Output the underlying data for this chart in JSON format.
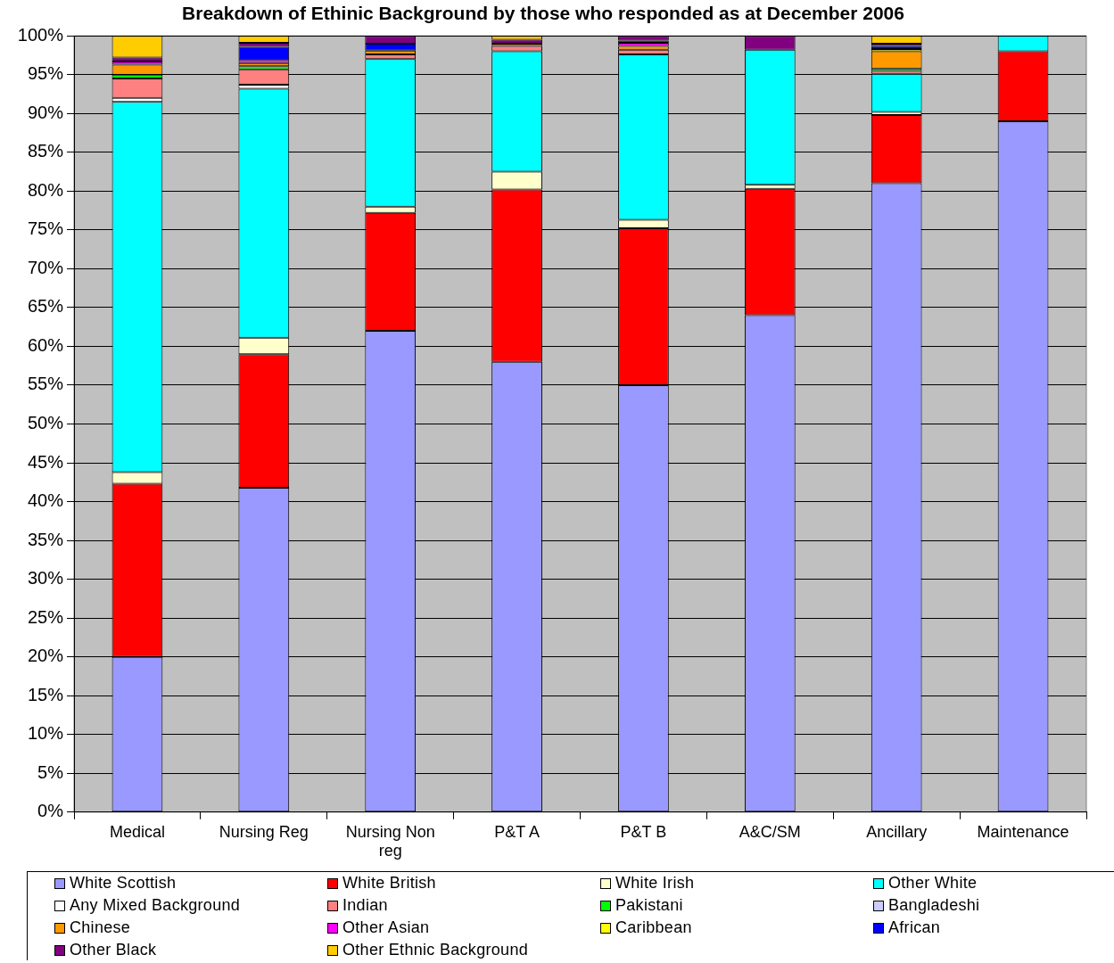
{
  "chart_data": {
    "type": "bar",
    "stacked": true,
    "title": "Breakdown of Ethinic Background by those who responded as at December 2006",
    "categories": [
      "Medical",
      "Nursing Reg",
      "Nursing Non reg",
      "P&T A",
      "P&T B",
      "A&C/SM",
      "Ancillary",
      "Maintenance"
    ],
    "ylim": [
      0,
      100
    ],
    "yticks": [
      {
        "value": 0,
        "label": "0%"
      },
      {
        "value": 5,
        "label": "5%"
      },
      {
        "value": 10,
        "label": "10%"
      },
      {
        "value": 15,
        "label": "15%"
      },
      {
        "value": 20,
        "label": "20%"
      },
      {
        "value": 25,
        "label": "25%"
      },
      {
        "value": 30,
        "label": "30%"
      },
      {
        "value": 35,
        "label": "35%"
      },
      {
        "value": 40,
        "label": "40%"
      },
      {
        "value": 45,
        "label": "45%"
      },
      {
        "value": 50,
        "label": "50%"
      },
      {
        "value": 55,
        "label": "55%"
      },
      {
        "value": 60,
        "label": "60%"
      },
      {
        "value": 65,
        "label": "65%"
      },
      {
        "value": 70,
        "label": "70%"
      },
      {
        "value": 75,
        "label": "75%"
      },
      {
        "value": 80,
        "label": "80%"
      },
      {
        "value": 85,
        "label": "85%"
      },
      {
        "value": 90,
        "label": "90%"
      },
      {
        "value": 95,
        "label": "95%"
      },
      {
        "value": 100,
        "label": "100%"
      }
    ],
    "grid": "y",
    "legend": "bottom",
    "series": [
      {
        "name": "White Scottish",
        "color": "#9999ff",
        "values": [
          20,
          41.8,
          62,
          58,
          55,
          64,
          81,
          89
        ]
      },
      {
        "name": "White British",
        "color": "#ff0000",
        "values": [
          22.3,
          17.2,
          15.2,
          22.2,
          20.2,
          16.3,
          8.8,
          9
        ]
      },
      {
        "name": "White Irish",
        "color": "#ffffcc",
        "values": [
          1.5,
          2.1,
          0.8,
          2.3,
          1.1,
          0.5,
          0.4,
          0
        ]
      },
      {
        "name": "Other White",
        "color": "#00ffff",
        "values": [
          47.7,
          32.1,
          19,
          15.5,
          21.3,
          17.4,
          4.9,
          2
        ]
      },
      {
        "name": "Any Mixed Background",
        "color": "#ffffff",
        "values": [
          0.5,
          0.5,
          null,
          null,
          0,
          null,
          0,
          0
        ]
      },
      {
        "name": "Indian",
        "color": "#ff8080",
        "values": [
          2.5,
          2.0,
          0.6,
          0.7,
          0.6,
          0,
          0.4,
          0
        ]
      },
      {
        "name": "Pakistani",
        "color": "#00ff00",
        "values": [
          0.5,
          0.4,
          0,
          0,
          0,
          0,
          0.3,
          0
        ]
      },
      {
        "name": "Bangladeshi",
        "color": "#ccccff",
        "values": [
          0,
          0,
          0,
          0,
          0,
          0,
          0,
          0
        ]
      },
      {
        "name": "Chinese",
        "color": "#ff9900",
        "values": [
          1.3,
          0.4,
          0.5,
          0.3,
          0.5,
          0,
          2.2,
          0
        ]
      },
      {
        "name": "Other Asian",
        "color": "#ff00ff",
        "values": [
          0.4,
          0.4,
          0,
          0,
          0.4,
          0,
          0,
          0
        ]
      },
      {
        "name": "Caribbean",
        "color": "#ffff00",
        "values": [
          0,
          0,
          0,
          0,
          0,
          0,
          0.3,
          0
        ]
      },
      {
        "name": "African",
        "color": "#0000ff",
        "values": [
          0,
          1.7,
          0.9,
          0,
          0.3,
          0,
          0.4,
          0
        ]
      },
      {
        "name": "Other Black",
        "color": "#800080",
        "values": [
          0.5,
          0.5,
          1.0,
          0.5,
          0.6,
          1.8,
          0.3,
          0
        ]
      },
      {
        "name": "Other Ethnic Background",
        "color": "#ffcc00",
        "values": [
          2.8,
          0.9,
          0,
          0.5,
          0,
          0,
          1.0,
          0
        ]
      }
    ]
  }
}
